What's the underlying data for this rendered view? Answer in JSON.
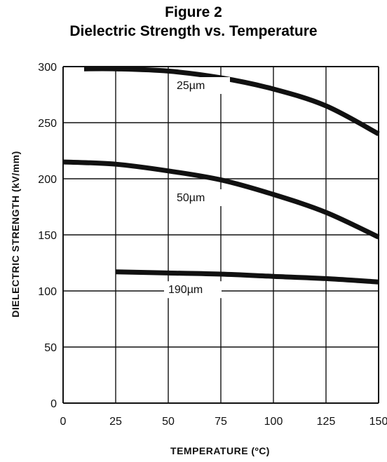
{
  "figure_label": "Figure 2",
  "chart_data": {
    "type": "line",
    "title": "Dielectric Strength vs. Temperature",
    "xlabel": "TEMPERATURE (ºC)",
    "ylabel": "DIELECTRIC STRENGTH (kV/mm)",
    "xlim": [
      0,
      150
    ],
    "ylim": [
      0,
      300
    ],
    "x_ticks": [
      0,
      25,
      50,
      75,
      100,
      125,
      150
    ],
    "y_ticks": [
      0,
      50,
      100,
      150,
      200,
      250,
      300
    ],
    "grid": true,
    "legend": "inline labels on curves",
    "series": [
      {
        "name": "25µm",
        "x": [
          10,
          25,
          50,
          75,
          100,
          125,
          150
        ],
        "y": [
          298,
          298,
          296,
          290,
          280,
          265,
          240
        ]
      },
      {
        "name": "50µm",
        "x": [
          0,
          25,
          50,
          75,
          100,
          125,
          150
        ],
        "y": [
          215,
          213,
          207,
          199,
          186,
          170,
          148
        ]
      },
      {
        "name": "190µm",
        "x": [
          25,
          50,
          75,
          100,
          125,
          150
        ],
        "y": [
          117,
          116,
          115,
          113,
          111,
          108
        ]
      }
    ],
    "colors": {
      "line": "#111111",
      "grid": "#111111",
      "background": "#ffffff"
    }
  }
}
